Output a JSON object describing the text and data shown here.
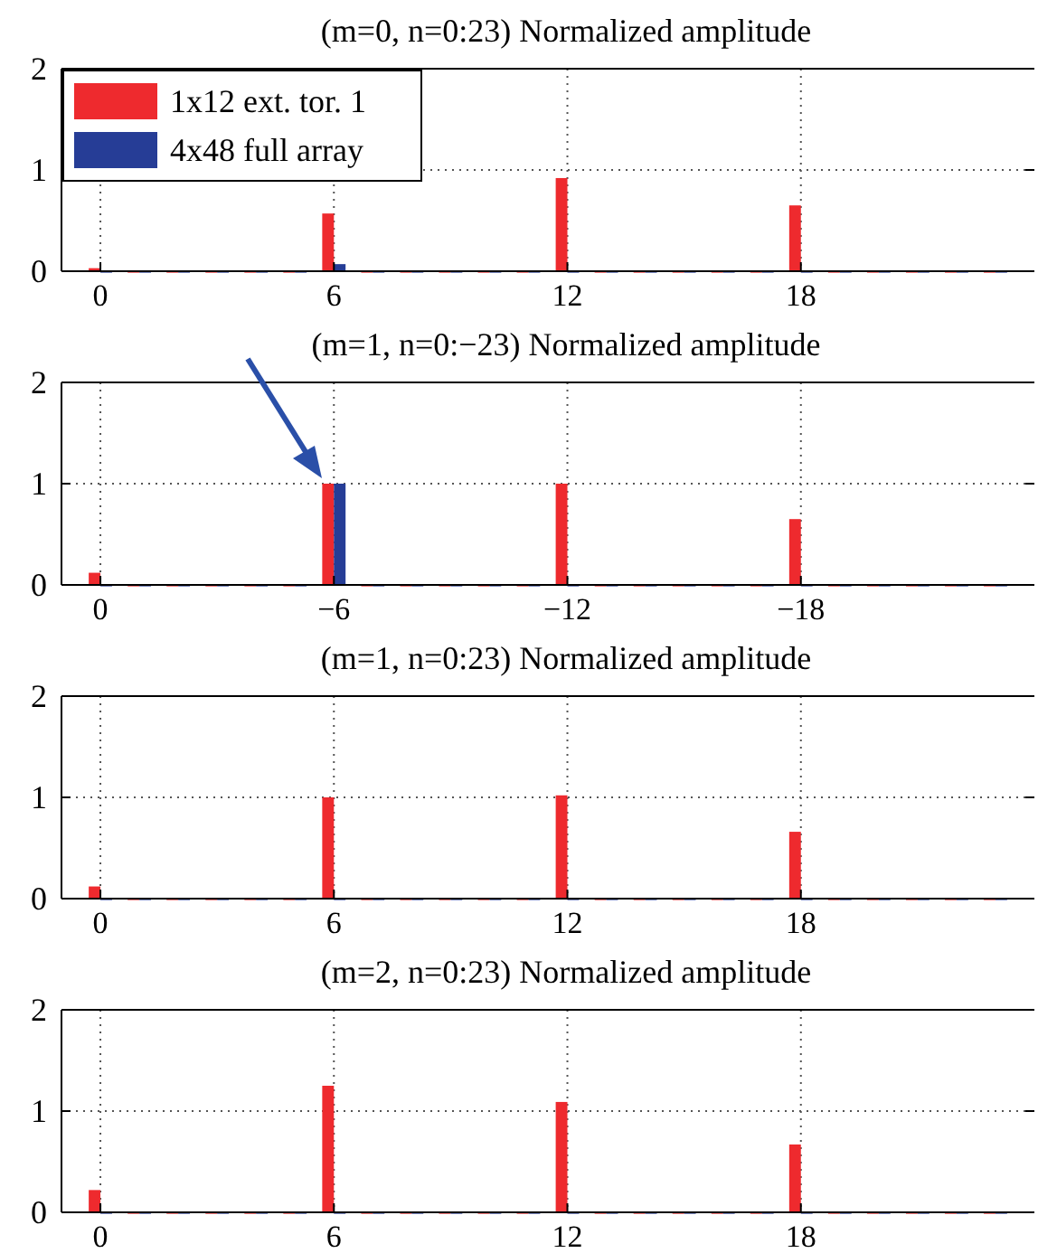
{
  "chart_data": [
    {
      "type": "bar",
      "title": "(m=0, n=0:23) Normalized amplitude",
      "x": [
        0,
        1,
        2,
        3,
        4,
        5,
        6,
        7,
        8,
        9,
        10,
        11,
        12,
        13,
        14,
        15,
        16,
        17,
        18,
        19,
        20,
        21,
        22,
        23
      ],
      "xlim": [
        -1,
        24
      ],
      "xticks": [
        0,
        6,
        12,
        18
      ],
      "ylim": [
        0,
        2
      ],
      "yticks": [
        0,
        1,
        2
      ],
      "grid": true,
      "legend": "top left",
      "series": [
        {
          "name": "1x12 ext. tor. 1",
          "color": "#ee2a2e",
          "values": [
            0.03,
            0,
            0,
            0,
            0,
            0,
            0.57,
            0,
            0,
            0,
            0,
            0,
            0.92,
            0,
            0,
            0,
            0,
            0,
            0.65,
            0,
            0,
            0,
            0,
            0
          ]
        },
        {
          "name": "4x48 full array",
          "color": "#263d96",
          "values": [
            0,
            0,
            0,
            0,
            0,
            0,
            0.07,
            0,
            0,
            0,
            0,
            0,
            0,
            0,
            0,
            0,
            0,
            0,
            0,
            0,
            0,
            0,
            0,
            0
          ]
        }
      ]
    },
    {
      "type": "bar",
      "title": "(m=1, n=0:−23) Normalized amplitude",
      "x": [
        0,
        -1,
        -2,
        -3,
        -4,
        -5,
        -6,
        -7,
        -8,
        -9,
        -10,
        -11,
        -12,
        -13,
        -14,
        -15,
        -16,
        -17,
        -18,
        -19,
        -20,
        -21,
        -22,
        -23
      ],
      "xlim": [
        1,
        -24
      ],
      "xticks": [
        0,
        {
          "value": -6,
          "label": "−6"
        },
        {
          "value": -12,
          "label": "−12"
        },
        {
          "value": -18,
          "label": "−18"
        }
      ],
      "ylim": [
        0,
        2
      ],
      "yticks": [
        0,
        1,
        2
      ],
      "grid": true,
      "series": [
        {
          "color": "#ee2a2e",
          "values": [
            0.12,
            0,
            0,
            0,
            0,
            0,
            1.0,
            0,
            0,
            0,
            0,
            0,
            1.0,
            0,
            0,
            0,
            0,
            0,
            0.65,
            0,
            0,
            0,
            0,
            0
          ]
        },
        {
          "color": "#263d96",
          "values": [
            0,
            0,
            0,
            0,
            0,
            0,
            1.0,
            0,
            0,
            0,
            0,
            0,
            0,
            0,
            0,
            0,
            0,
            0,
            0,
            0,
            0,
            0,
            0,
            0
          ]
        }
      ]
    },
    {
      "type": "bar",
      "title": "(m=1, n=0:23) Normalized amplitude",
      "x": [
        0,
        1,
        2,
        3,
        4,
        5,
        6,
        7,
        8,
        9,
        10,
        11,
        12,
        13,
        14,
        15,
        16,
        17,
        18,
        19,
        20,
        21,
        22,
        23
      ],
      "xlim": [
        -1,
        24
      ],
      "xticks": [
        0,
        6,
        12,
        18
      ],
      "ylim": [
        0,
        2
      ],
      "yticks": [
        0,
        1,
        2
      ],
      "grid": true,
      "series": [
        {
          "color": "#ee2a2e",
          "values": [
            0.12,
            0,
            0,
            0,
            0,
            0,
            1.0,
            0,
            0,
            0,
            0,
            0,
            1.02,
            0,
            0,
            0,
            0,
            0,
            0.66,
            0,
            0,
            0,
            0,
            0
          ]
        },
        {
          "color": "#263d96",
          "values": [
            0,
            0,
            0,
            0,
            0,
            0,
            0,
            0,
            0,
            0,
            0,
            0,
            0,
            0,
            0,
            0,
            0,
            0,
            0,
            0,
            0,
            0,
            0,
            0
          ]
        }
      ]
    },
    {
      "type": "bar",
      "title": "(m=2, n=0:23) Normalized amplitude",
      "x": [
        0,
        1,
        2,
        3,
        4,
        5,
        6,
        7,
        8,
        9,
        10,
        11,
        12,
        13,
        14,
        15,
        16,
        17,
        18,
        19,
        20,
        21,
        22,
        23
      ],
      "xlim": [
        -1,
        24
      ],
      "xticks": [
        0,
        6,
        12,
        18
      ],
      "ylim": [
        0,
        2
      ],
      "yticks": [
        0,
        1,
        2
      ],
      "grid": true,
      "series": [
        {
          "color": "#ee2a2e",
          "values": [
            0.22,
            0,
            0,
            0,
            0,
            0,
            1.25,
            0,
            0,
            0,
            0,
            0,
            1.09,
            0,
            0,
            0,
            0,
            0,
            0.67,
            0,
            0,
            0,
            0,
            0
          ]
        },
        {
          "color": "#263d96",
          "values": [
            0,
            0,
            0,
            0,
            0,
            0,
            0,
            0,
            0,
            0,
            0,
            0,
            0,
            0,
            0,
            0,
            0,
            0,
            0,
            0,
            0,
            0,
            0,
            0
          ]
        }
      ]
    }
  ]
}
